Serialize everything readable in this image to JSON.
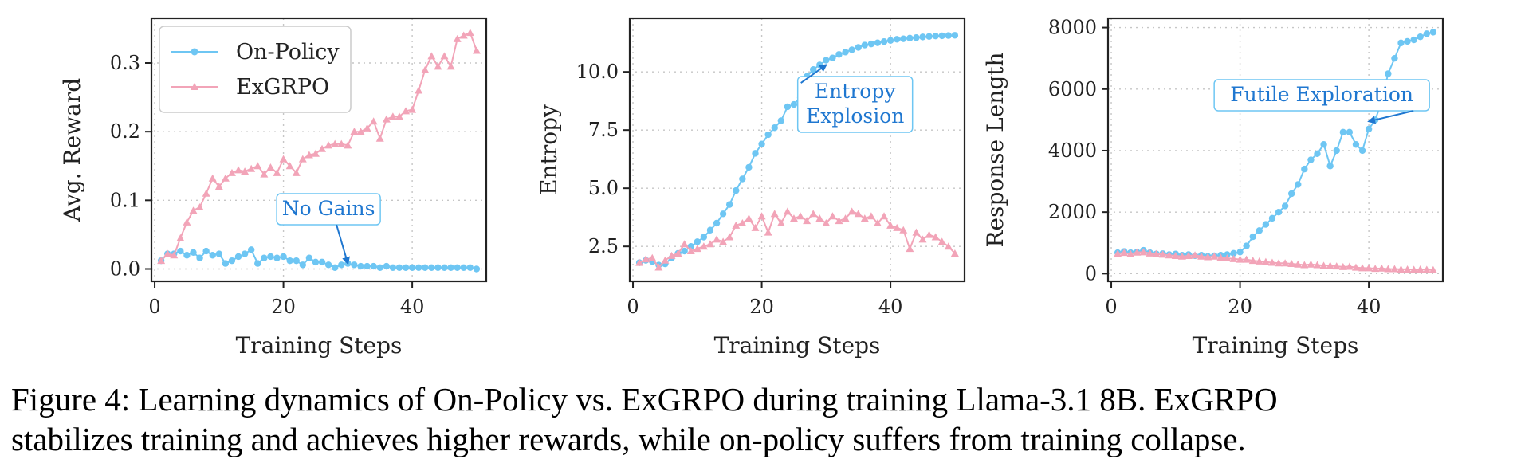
{
  "colors": {
    "on_policy": "#6ec6f3",
    "exgrpo": "#f2a4b8",
    "annotation": "#1f77d0",
    "grid": "#c6c6c6",
    "axis": "#222222"
  },
  "legend": {
    "on_policy_label": "On-Policy",
    "exgrpo_label": "ExGRPO"
  },
  "chart_data": [
    {
      "type": "line",
      "title": "",
      "xlabel": "Training Steps",
      "ylabel": "Avg. Reward",
      "xlim": [
        -0.5,
        51.5
      ],
      "ylim": [
        -0.018,
        0.365
      ],
      "xticks": [
        0,
        20,
        40
      ],
      "yticks": [
        0.0,
        0.1,
        0.2,
        0.3
      ],
      "ytick_labels": [
        "0.0",
        "0.1",
        "0.2",
        "0.3"
      ],
      "grid": true,
      "legend": "top-left",
      "x": [
        1,
        2,
        3,
        4,
        5,
        6,
        7,
        8,
        9,
        10,
        11,
        12,
        13,
        14,
        15,
        16,
        17,
        18,
        19,
        20,
        21,
        22,
        23,
        24,
        25,
        26,
        27,
        28,
        29,
        30,
        31,
        32,
        33,
        34,
        35,
        36,
        37,
        38,
        39,
        40,
        41,
        42,
        43,
        44,
        45,
        46,
        47,
        48,
        49,
        50
      ],
      "series": [
        {
          "name": "On-Policy",
          "marker": "circle",
          "values": [
            0.012,
            0.022,
            0.022,
            0.026,
            0.02,
            0.024,
            0.016,
            0.026,
            0.02,
            0.022,
            0.008,
            0.012,
            0.018,
            0.022,
            0.028,
            0.008,
            0.016,
            0.018,
            0.016,
            0.018,
            0.012,
            0.012,
            0.006,
            0.016,
            0.01,
            0.01,
            0.006,
            0.002,
            0.006,
            0.008,
            0.006,
            0.004,
            0.004,
            0.004,
            0.002,
            0.004,
            0.002,
            0.002,
            0.002,
            0.002,
            0.002,
            0.002,
            0.002,
            0.002,
            0.002,
            0.002,
            0.002,
            0.002,
            0.002,
            0.0
          ]
        },
        {
          "name": "ExGRPO",
          "marker": "triangle",
          "values": [
            0.012,
            0.022,
            0.02,
            0.045,
            0.068,
            0.085,
            0.09,
            0.11,
            0.132,
            0.12,
            0.132,
            0.14,
            0.144,
            0.142,
            0.146,
            0.15,
            0.138,
            0.148,
            0.14,
            0.16,
            0.15,
            0.14,
            0.16,
            0.166,
            0.168,
            0.175,
            0.18,
            0.182,
            0.182,
            0.18,
            0.2,
            0.2,
            0.205,
            0.215,
            0.19,
            0.218,
            0.222,
            0.222,
            0.23,
            0.232,
            0.26,
            0.29,
            0.31,
            0.295,
            0.31,
            0.295,
            0.335,
            0.34,
            0.344,
            0.318
          ]
        }
      ],
      "annotations": [
        {
          "text": "No Gains",
          "target": [
            30,
            0.008
          ],
          "label_at": [
            27,
            0.087
          ]
        }
      ]
    },
    {
      "type": "line",
      "title": "",
      "xlabel": "Training Steps",
      "ylabel": "Entropy",
      "xlim": [
        -0.5,
        51.5
      ],
      "ylim": [
        1.0,
        12.3
      ],
      "xticks": [
        0,
        20,
        40
      ],
      "yticks": [
        2.5,
        5.0,
        7.5,
        10.0
      ],
      "ytick_labels": [
        "2.5",
        "5.0",
        "7.5",
        "10.0"
      ],
      "grid": true,
      "legend": "",
      "x": [
        1,
        2,
        3,
        4,
        5,
        6,
        7,
        8,
        9,
        10,
        11,
        12,
        13,
        14,
        15,
        16,
        17,
        18,
        19,
        20,
        21,
        22,
        23,
        24,
        25,
        26,
        27,
        28,
        29,
        30,
        31,
        32,
        33,
        34,
        35,
        36,
        37,
        38,
        39,
        40,
        41,
        42,
        43,
        44,
        45,
        46,
        47,
        48,
        49,
        50
      ],
      "series": [
        {
          "name": "On-Policy",
          "marker": "circle",
          "values": [
            1.8,
            1.9,
            1.85,
            1.7,
            1.75,
            2.0,
            2.2,
            2.3,
            2.5,
            2.7,
            2.9,
            3.2,
            3.5,
            3.9,
            4.3,
            4.9,
            5.4,
            5.9,
            6.5,
            6.9,
            7.3,
            7.6,
            7.9,
            8.5,
            8.6,
            8.9,
            9.8,
            10.1,
            10.3,
            10.5,
            10.6,
            10.75,
            10.85,
            10.95,
            11.05,
            11.15,
            11.2,
            11.25,
            11.3,
            11.35,
            11.4,
            11.42,
            11.45,
            11.47,
            11.5,
            11.52,
            11.54,
            11.55,
            11.56,
            11.57
          ]
        },
        {
          "name": "ExGRPO",
          "marker": "triangle",
          "values": [
            1.8,
            1.95,
            2.0,
            1.6,
            1.9,
            2.1,
            2.2,
            2.6,
            2.3,
            2.4,
            2.5,
            2.6,
            2.8,
            2.7,
            2.9,
            3.4,
            3.5,
            3.7,
            3.3,
            3.8,
            3.1,
            3.9,
            3.5,
            4.0,
            3.7,
            3.8,
            3.6,
            3.9,
            3.7,
            3.5,
            3.8,
            3.6,
            3.7,
            4.0,
            3.9,
            3.7,
            3.8,
            3.5,
            3.8,
            3.4,
            3.3,
            3.2,
            2.4,
            3.1,
            2.8,
            3.0,
            2.9,
            2.7,
            2.5,
            2.2
          ]
        }
      ],
      "annotations": [
        {
          "text": "Entropy\nExplosion",
          "target": [
            30,
            10.3
          ],
          "label_at": [
            34.5,
            8.6
          ]
        }
      ]
    },
    {
      "type": "line",
      "title": "",
      "xlabel": "Training Steps",
      "ylabel": "Response Length",
      "xlim": [
        -0.5,
        51.5
      ],
      "ylim": [
        -250,
        8300
      ],
      "xticks": [
        0,
        20,
        40
      ],
      "yticks": [
        0,
        2000,
        4000,
        6000,
        8000
      ],
      "ytick_labels": [
        "0",
        "2000",
        "4000",
        "6000",
        "8000"
      ],
      "grid": true,
      "legend": "",
      "x": [
        1,
        2,
        3,
        4,
        5,
        6,
        7,
        8,
        9,
        10,
        11,
        12,
        13,
        14,
        15,
        16,
        17,
        18,
        19,
        20,
        21,
        22,
        23,
        24,
        25,
        26,
        27,
        28,
        29,
        30,
        31,
        32,
        33,
        34,
        35,
        36,
        37,
        38,
        39,
        40,
        41,
        42,
        43,
        44,
        45,
        46,
        47,
        48,
        49,
        50
      ],
      "series": [
        {
          "name": "On-Policy",
          "marker": "circle",
          "values": [
            680,
            720,
            680,
            700,
            760,
            680,
            640,
            650,
            620,
            640,
            600,
            620,
            580,
            600,
            560,
            580,
            600,
            620,
            660,
            700,
            900,
            1200,
            1400,
            1600,
            1800,
            2000,
            2200,
            2600,
            2900,
            3400,
            3700,
            3900,
            4200,
            3500,
            4000,
            4600,
            4600,
            4200,
            4000,
            4700,
            5000,
            5600,
            6500,
            7000,
            7500,
            7550,
            7600,
            7700,
            7800,
            7850
          ]
        },
        {
          "name": "ExGRPO",
          "marker": "triangle",
          "values": [
            650,
            680,
            640,
            690,
            700,
            660,
            640,
            620,
            600,
            580,
            560,
            580,
            600,
            560,
            540,
            560,
            520,
            500,
            480,
            460,
            460,
            420,
            400,
            380,
            360,
            340,
            340,
            320,
            300,
            280,
            300,
            280,
            260,
            260,
            240,
            220,
            230,
            200,
            180,
            180,
            160,
            170,
            150,
            150,
            140,
            140,
            130,
            140,
            130,
            120
          ]
        }
      ],
      "annotations": [
        {
          "text": "Futile Exploration",
          "target": [
            40,
            4950
          ],
          "label_at": [
            32.7,
            5800
          ]
        }
      ]
    }
  ],
  "caption": {
    "line1": "Figure 4: Learning dynamics of On-Policy vs. ExGRPO during training Llama-3.1 8B. ExGRPO",
    "line2": "stabilizes training and achieves higher rewards, while on-policy suffers from training collapse."
  }
}
